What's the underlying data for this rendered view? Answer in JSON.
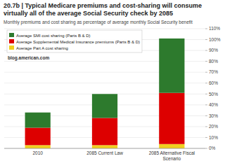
{
  "chart_data": {
    "type": "bar",
    "stacked": true,
    "title": "20.7b | Typical Medicare premiums and cost-sharing will consume\nvirtually all of the average Social Security check by 2085",
    "subtitle": "Monthly premiums and cost sharing as percentage of average monthly Social Security benefit",
    "annotations": [
      "blog.american.com"
    ],
    "categories": [
      "2010",
      "2085 Current Law",
      "2085 Alternative Fiscal\nScenario"
    ],
    "series": [
      {
        "name": "Average Part A cost sharing",
        "color": "#f0d020",
        "values": [
          3,
          3,
          4
        ]
      },
      {
        "name": "Average Supplemental Medical Insurance premiums (Parts B & D)",
        "color": "#dd0000",
        "values": [
          16,
          25,
          47
        ]
      },
      {
        "name": "Average SMI cost sharing (Parts B & D)",
        "color": "#2d7a2d",
        "values": [
          14,
          22,
          50
        ]
      }
    ],
    "ylim": [
      0,
      110
    ],
    "yticks": [
      {
        "value": 0,
        "label": "0%"
      },
      {
        "value": 10,
        "label": "10%"
      },
      {
        "value": 20,
        "label": "20%"
      },
      {
        "value": 30,
        "label": "30%"
      },
      {
        "value": 40,
        "label": "40%"
      },
      {
        "value": 50,
        "label": "50%"
      },
      {
        "value": 60,
        "label": "60%"
      },
      {
        "value": 70,
        "label": "70%"
      },
      {
        "value": 80,
        "label": "80%"
      },
      {
        "value": 90,
        "label": "90%"
      },
      {
        "value": 100,
        "label": "100%"
      },
      {
        "value": 110,
        "label": "110%"
      }
    ],
    "grid": true,
    "legend": "upper left"
  }
}
